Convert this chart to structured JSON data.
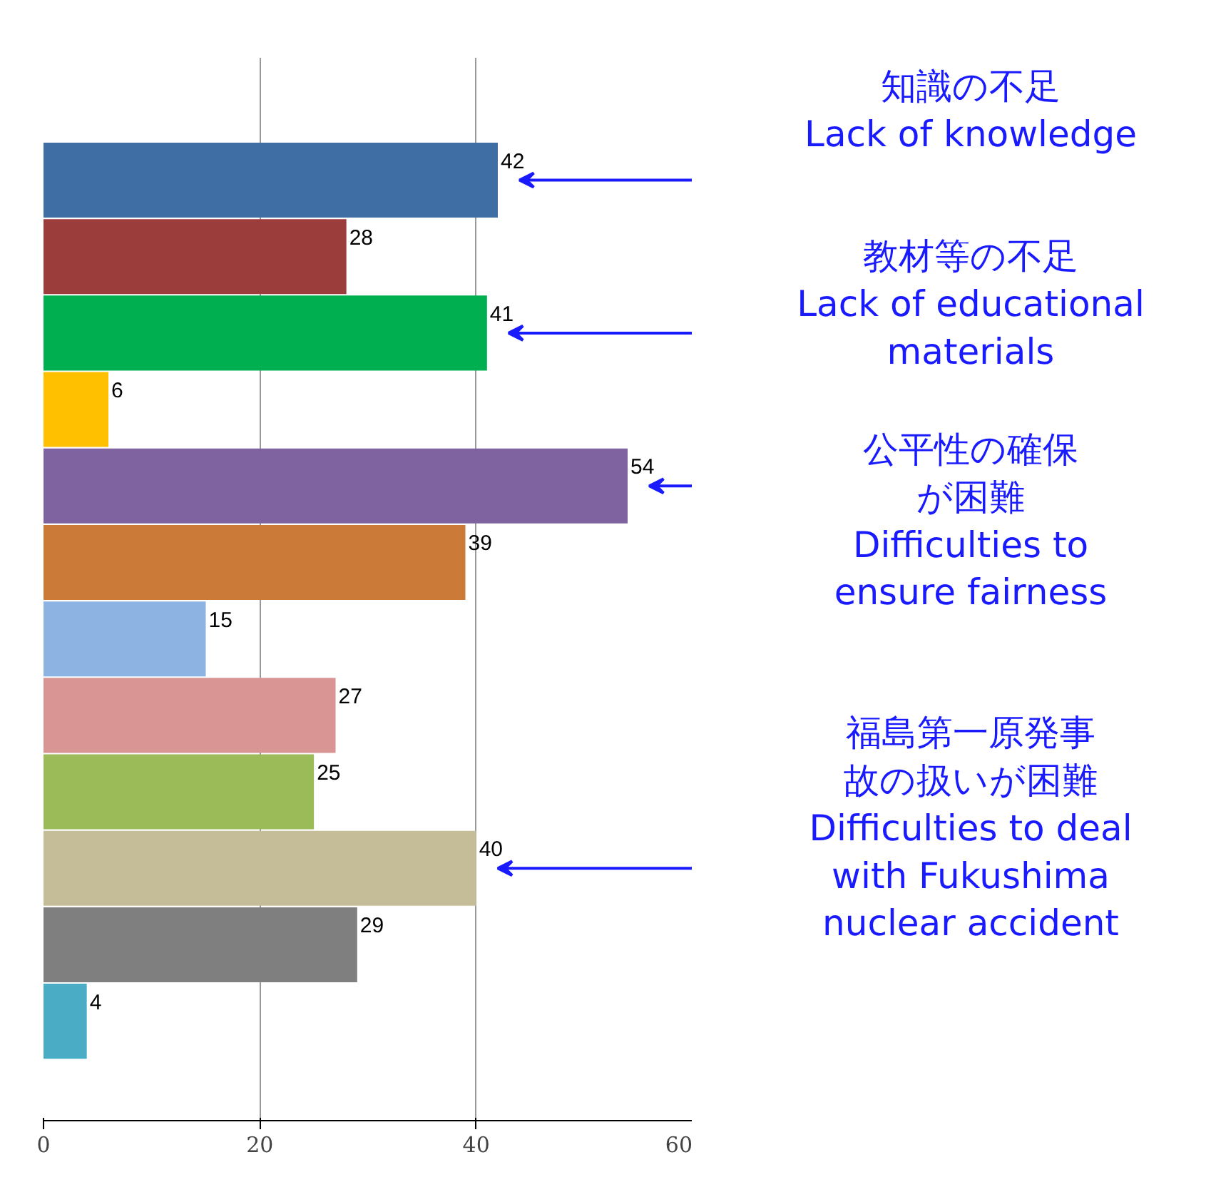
{
  "chart_data": {
    "type": "bar",
    "orientation": "horizontal",
    "categories": [
      null,
      null,
      null,
      null,
      null,
      null,
      null,
      null,
      null,
      null,
      null,
      null
    ],
    "values": [
      42,
      28,
      41,
      6,
      54,
      39,
      15,
      27,
      25,
      40,
      29,
      4
    ],
    "colors": [
      "#3f6ea5",
      "#9b3d3b",
      "#00b050",
      "#ffc000",
      "#7f62a0",
      "#cc7a38",
      "#8db3e2",
      "#d99594",
      "#9bbb59",
      "#c4bd97",
      "#7f7f7f",
      "#4bacc6"
    ],
    "xlim": [
      0,
      60
    ],
    "xticks": [
      0,
      20,
      40,
      60
    ],
    "grid": "x",
    "data_labels": true,
    "annotations": [
      "知識の不足\nLack of knowledge",
      "教材等の不足\nLack of educational\nmaterials",
      "公平性の確保が困難\nDifficulties to\nensure fairness",
      "福島第一原発事故の扱いが困難\nDifficulties to deal\nwith Fukushima\nnuclear accident"
    ]
  }
}
